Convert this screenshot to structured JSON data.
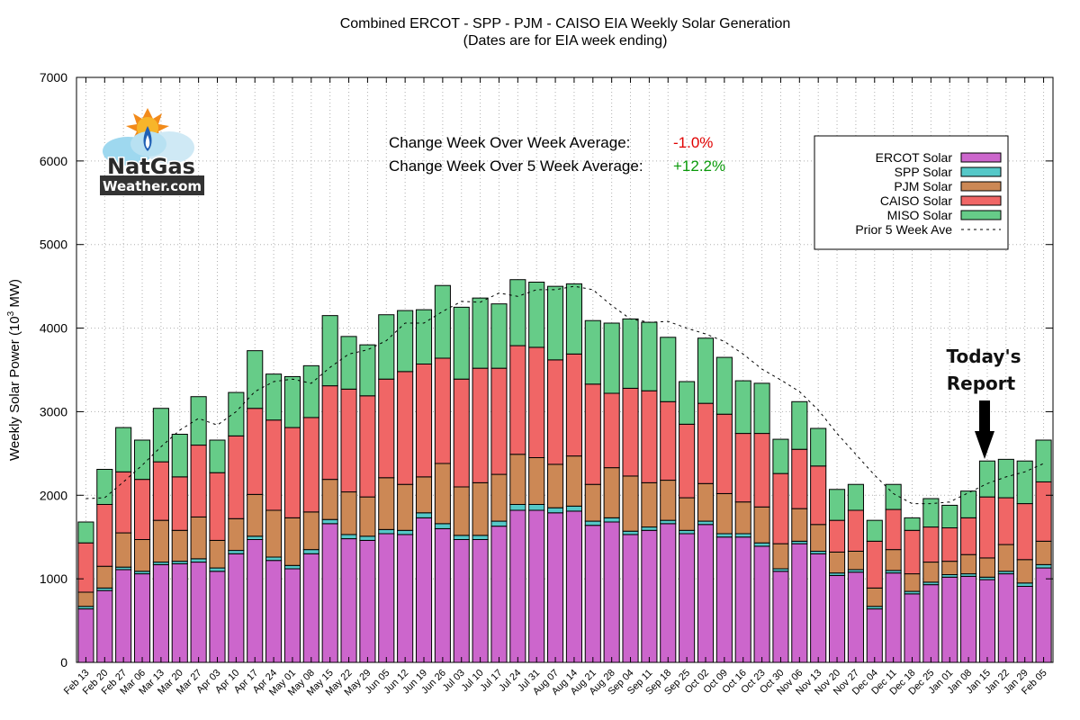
{
  "chart_data": {
    "type": "bar",
    "stacked": true,
    "title": "Combined ERCOT - SPP - PJM - CAISO EIA Weekly Solar Generation",
    "subtitle": "(Dates are for EIA week ending)",
    "ylabel": "Weekly Solar Power (10",
    "ylabel_sup": "3",
    "ylabel_end": " MW)",
    "ylim": [
      0,
      7000
    ],
    "yticks": [
      0,
      1000,
      2000,
      3000,
      4000,
      5000,
      6000,
      7000
    ],
    "grid": true,
    "legend_position": "top-right",
    "categories": [
      "Feb 13",
      "Feb 20",
      "Feb 27",
      "Mar 06",
      "Mar 13",
      "Mar 20",
      "Mar 27",
      "Apr 03",
      "Apr 10",
      "Apr 17",
      "Apr 24",
      "May 01",
      "May 08",
      "May 15",
      "May 22",
      "May 29",
      "Jun 05",
      "Jun 12",
      "Jun 19",
      "Jun 26",
      "Jul 03",
      "Jul 10",
      "Jul 17",
      "Jul 24",
      "Jul 31",
      "Aug 07",
      "Aug 14",
      "Aug 21",
      "Aug 28",
      "Sep 04",
      "Sep 11",
      "Sep 18",
      "Sep 25",
      "Oct 02",
      "Oct 09",
      "Oct 16",
      "Oct 23",
      "Oct 30",
      "Nov 06",
      "Nov 13",
      "Nov 20",
      "Nov 27",
      "Dec 04",
      "Dec 11",
      "Dec 18",
      "Dec 25",
      "Jan 01",
      "Jan 08",
      "Jan 15",
      "Jan 22",
      "Jan 29",
      "Feb 05"
    ],
    "series": [
      {
        "name": "ERCOT Solar",
        "color": "#cc66cc",
        "values": [
          640,
          860,
          1110,
          1060,
          1170,
          1180,
          1200,
          1090,
          1300,
          1470,
          1220,
          1120,
          1300,
          1660,
          1480,
          1460,
          1540,
          1530,
          1730,
          1600,
          1470,
          1470,
          1630,
          1820,
          1820,
          1790,
          1810,
          1640,
          1680,
          1530,
          1580,
          1660,
          1540,
          1650,
          1500,
          1500,
          1390,
          1090,
          1420,
          1300,
          1040,
          1080,
          640,
          1070,
          820,
          930,
          1020,
          1030,
          990,
          1060,
          910,
          1130
        ]
      },
      {
        "name": "SPP Solar",
        "color": "#55c8c8",
        "values": [
          30,
          30,
          30,
          30,
          30,
          30,
          40,
          40,
          40,
          40,
          40,
          40,
          50,
          50,
          50,
          50,
          50,
          50,
          60,
          60,
          50,
          50,
          60,
          70,
          70,
          60,
          60,
          50,
          50,
          40,
          40,
          40,
          40,
          40,
          40,
          40,
          40,
          30,
          30,
          30,
          30,
          30,
          30,
          30,
          30,
          30,
          30,
          30,
          30,
          30,
          40,
          40
        ]
      },
      {
        "name": "PJM Solar",
        "color": "#cc8855",
        "values": [
          170,
          260,
          410,
          380,
          500,
          370,
          500,
          330,
          380,
          500,
          560,
          570,
          450,
          480,
          510,
          470,
          620,
          550,
          430,
          720,
          580,
          630,
          560,
          600,
          560,
          520,
          600,
          440,
          600,
          660,
          530,
          480,
          390,
          450,
          480,
          380,
          430,
          300,
          390,
          320,
          250,
          220,
          220,
          250,
          210,
          240,
          160,
          230,
          230,
          320,
          280,
          280
        ]
      },
      {
        "name": "CAISO Solar",
        "color": "#f06666",
        "values": [
          590,
          740,
          730,
          720,
          700,
          640,
          860,
          810,
          990,
          1030,
          1080,
          1080,
          1130,
          1120,
          1230,
          1210,
          1180,
          1350,
          1350,
          1260,
          1290,
          1370,
          1270,
          1300,
          1320,
          1250,
          1220,
          1200,
          890,
          1050,
          1100,
          940,
          880,
          960,
          950,
          820,
          880,
          840,
          710,
          700,
          380,
          490,
          560,
          480,
          520,
          420,
          400,
          440,
          730,
          560,
          670,
          710
        ]
      },
      {
        "name": "MISO Solar",
        "color": "#66cc88",
        "values": [
          250,
          420,
          530,
          470,
          640,
          510,
          580,
          390,
          520,
          690,
          550,
          610,
          620,
          840,
          630,
          610,
          770,
          730,
          650,
          870,
          860,
          840,
          770,
          790,
          780,
          880,
          840,
          760,
          840,
          830,
          820,
          770,
          510,
          780,
          680,
          630,
          600,
          410,
          570,
          450,
          370,
          310,
          250,
          300,
          150,
          340,
          270,
          320,
          430,
          460,
          510,
          500
        ]
      }
    ],
    "prior_5_week_ave": {
      "name": "Prior 5 Week Ave",
      "values": [
        1960,
        1970,
        2160,
        2360,
        2580,
        2780,
        2920,
        2840,
        3000,
        3240,
        3360,
        3390,
        3340,
        3530,
        3690,
        3740,
        3850,
        4060,
        4060,
        4200,
        4320,
        4310,
        4420,
        4380,
        4460,
        4460,
        4500,
        4460,
        4270,
        4110,
        4070,
        4080,
        4000,
        3930,
        3840,
        3690,
        3510,
        3380,
        3240,
        3020,
        2740,
        2490,
        2240,
        2020,
        1900,
        1900,
        1920,
        2030,
        2140,
        2220,
        2280,
        2380
      ]
    }
  },
  "annotations": {
    "wow_label": "Change Week Over Week Average:",
    "wow_value": "-1.0%",
    "w5_label": "Change Week Over 5 Week Average:",
    "w5_value": "+12.2%",
    "today_line1": "Today's",
    "today_line2": "Report"
  },
  "logo": {
    "line1": "NatGas",
    "line2": "Weather.com"
  },
  "colors": {
    "axis": "#000000",
    "grid": "#b0b0b0",
    "arrow": "#000000"
  }
}
